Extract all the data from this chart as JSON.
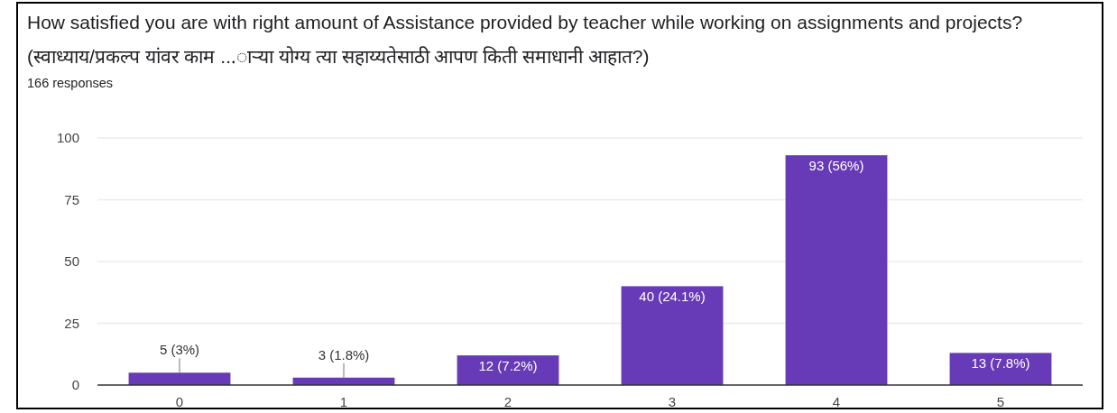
{
  "chart_data": {
    "type": "bar",
    "title": "How satisfied you are with right amount of Assistance provided by teacher while working on assignments and projects? (स्वाध्याय/प्रकल्प यांवर काम ...ाऱ्या योग्य त्या सहाय्यतेसाठी आपण किती समाधानी आहात?)",
    "subtitle": "166 responses",
    "categories": [
      "0",
      "1",
      "2",
      "3",
      "4",
      "5"
    ],
    "values": [
      5,
      3,
      12,
      40,
      93,
      13
    ],
    "value_labels": [
      "5 (3%)",
      "3 (1.8%)",
      "12 (7.2%)",
      "40 (24.1%)",
      "93 (56%)",
      "13 (7.8%)"
    ],
    "color": "#673ab7",
    "ylim": [
      0,
      100
    ],
    "yticks": [
      0,
      25,
      50,
      75,
      100
    ],
    "grid": "y"
  }
}
